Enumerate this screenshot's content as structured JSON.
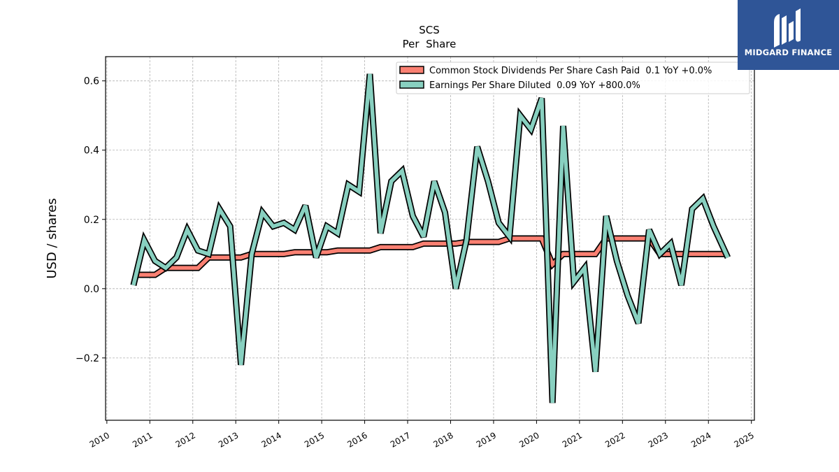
{
  "brand": {
    "name": "MIDGARD FINANCE",
    "bg_color": "#2f5597",
    "icon": "midgard-logo-icon"
  },
  "chart_data": {
    "type": "line",
    "title": "SCS",
    "subtitle": "Per  Share",
    "ylabel": "USD / shares",
    "xlabel": "",
    "xlim": [
      2009.97,
      2025.07
    ],
    "ylim": [
      -0.38,
      0.67
    ],
    "x_ticks": [
      2010,
      2011,
      2012,
      2013,
      2014,
      2015,
      2016,
      2017,
      2018,
      2019,
      2020,
      2021,
      2022,
      2023,
      2024,
      2025
    ],
    "x_tick_labels": [
      "2010",
      "2011",
      "2012",
      "2013",
      "2014",
      "2015",
      "2016",
      "2017",
      "2018",
      "2019",
      "2020",
      "2021",
      "2022",
      "2023",
      "2024",
      "2025"
    ],
    "y_ticks": [
      -0.2,
      0.0,
      0.2,
      0.4,
      0.6
    ],
    "y_tick_labels": [
      "−0.2",
      "0.0",
      "0.2",
      "0.4",
      "0.6"
    ],
    "grid": true,
    "legend_position": "top-right",
    "series": [
      {
        "name": "Common Stock Dividends Per Share Cash Paid  0.1 YoY +0.0%",
        "color": "#fa8072",
        "x": [
          2010.62,
          2010.87,
          2011.12,
          2011.37,
          2011.62,
          2011.87,
          2012.12,
          2012.37,
          2012.62,
          2012.87,
          2013.12,
          2013.37,
          2013.62,
          2013.87,
          2014.12,
          2014.37,
          2014.62,
          2014.87,
          2015.12,
          2015.37,
          2015.62,
          2015.87,
          2016.12,
          2016.37,
          2016.62,
          2016.87,
          2017.12,
          2017.37,
          2017.62,
          2017.87,
          2018.12,
          2018.37,
          2018.62,
          2018.87,
          2019.12,
          2019.37,
          2019.62,
          2019.87,
          2020.12,
          2020.37,
          2020.62,
          2020.87,
          2021.12,
          2021.37,
          2021.62,
          2021.87,
          2022.12,
          2022.37,
          2022.62,
          2022.87,
          2023.12,
          2023.37,
          2023.62,
          2023.87,
          2024.12,
          2024.45
        ],
        "values": [
          0.04,
          0.04,
          0.04,
          0.06,
          0.06,
          0.06,
          0.06,
          0.09,
          0.09,
          0.09,
          0.09,
          0.1,
          0.1,
          0.1,
          0.1,
          0.105,
          0.105,
          0.105,
          0.105,
          0.11,
          0.11,
          0.11,
          0.11,
          0.12,
          0.12,
          0.12,
          0.12,
          0.13,
          0.13,
          0.13,
          0.13,
          0.135,
          0.135,
          0.135,
          0.135,
          0.145,
          0.145,
          0.145,
          0.145,
          0.07,
          0.1,
          0.1,
          0.1,
          0.1,
          0.145,
          0.145,
          0.145,
          0.145,
          0.145,
          0.1,
          0.1,
          0.1,
          0.1,
          0.1,
          0.1,
          0.1
        ]
      },
      {
        "name": "Earnings Per Share Diluted  0.09 YoY +800.0%",
        "color": "#88d0c0",
        "x": [
          2010.62,
          2010.87,
          2011.12,
          2011.37,
          2011.62,
          2011.87,
          2012.12,
          2012.37,
          2012.62,
          2012.87,
          2013.12,
          2013.37,
          2013.62,
          2013.87,
          2014.12,
          2014.37,
          2014.62,
          2014.87,
          2015.12,
          2015.37,
          2015.62,
          2015.87,
          2016.12,
          2016.37,
          2016.62,
          2016.87,
          2017.12,
          2017.37,
          2017.62,
          2017.87,
          2018.12,
          2018.37,
          2018.62,
          2018.87,
          2019.12,
          2019.37,
          2019.62,
          2019.87,
          2020.12,
          2020.37,
          2020.62,
          2020.87,
          2021.12,
          2021.37,
          2021.62,
          2021.87,
          2022.12,
          2022.37,
          2022.62,
          2022.87,
          2023.12,
          2023.37,
          2023.62,
          2023.87,
          2024.12,
          2024.45
        ],
        "values": [
          0.01,
          0.14,
          0.08,
          0.06,
          0.09,
          0.17,
          0.11,
          0.1,
          0.23,
          0.18,
          -0.22,
          0.1,
          0.22,
          0.18,
          0.19,
          0.17,
          0.24,
          0.09,
          0.18,
          0.16,
          0.3,
          0.28,
          0.62,
          0.16,
          0.31,
          0.34,
          0.21,
          0.15,
          0.31,
          0.22,
          0.0,
          0.14,
          0.41,
          0.31,
          0.19,
          0.15,
          0.5,
          0.46,
          0.55,
          -0.33,
          0.47,
          0.02,
          0.06,
          -0.24,
          0.21,
          0.08,
          -0.02,
          -0.1,
          0.17,
          0.1,
          0.13,
          0.01,
          0.23,
          0.26,
          0.18,
          0.09
        ]
      }
    ]
  }
}
